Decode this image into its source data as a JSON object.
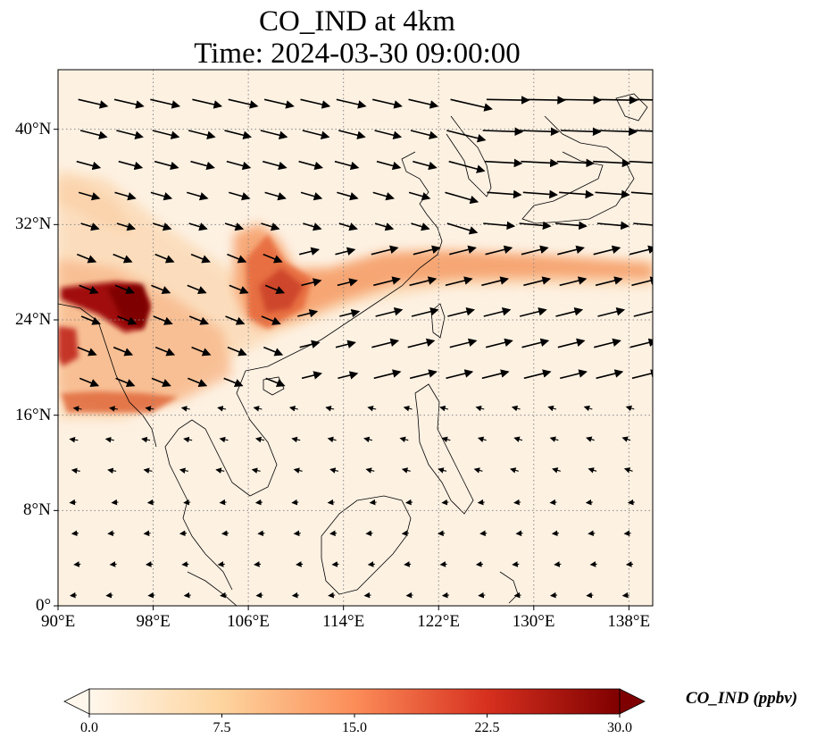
{
  "title_line1": "CO_IND at 4km",
  "title_line2": "Time: 2024-03-30 09:00:00",
  "map": {
    "lon_range": [
      90,
      140
    ],
    "lat_range": [
      0,
      45
    ],
    "lon_ticks": [
      {
        "value": 90,
        "label": "90°E"
      },
      {
        "value": 98,
        "label": "98°E"
      },
      {
        "value": 106,
        "label": "106°E"
      },
      {
        "value": 114,
        "label": "114°E"
      },
      {
        "value": 122,
        "label": "122°E"
      },
      {
        "value": 130,
        "label": "130°E"
      },
      {
        "value": 138,
        "label": "138°E"
      }
    ],
    "lat_ticks": [
      {
        "value": 0,
        "label": "0°"
      },
      {
        "value": 8,
        "label": "8°N"
      },
      {
        "value": 16,
        "label": "16°N"
      },
      {
        "value": 24,
        "label": "24°N"
      },
      {
        "value": 32,
        "label": "32°N"
      },
      {
        "value": 40,
        "label": "40°N"
      }
    ],
    "gridlines": "dotted",
    "wind_vectors": "arrows overlaid (quiver)",
    "colors": {
      "low": "#fff5eb",
      "mid": "#f4793a",
      "high": "#7f0000",
      "grid": "#888888"
    }
  },
  "colorbar": {
    "label": "CO_IND (ppbv)",
    "min": 0.0,
    "max": 30.0,
    "extend": "both",
    "cmap": "OrRd-like",
    "ticks": [
      {
        "value": 0,
        "label": "0.0"
      },
      {
        "value": 7.5,
        "label": "7.5"
      },
      {
        "value": 15,
        "label": "15.0"
      },
      {
        "value": 22.5,
        "label": "22.5"
      },
      {
        "value": 30,
        "label": "30.0"
      }
    ]
  }
}
